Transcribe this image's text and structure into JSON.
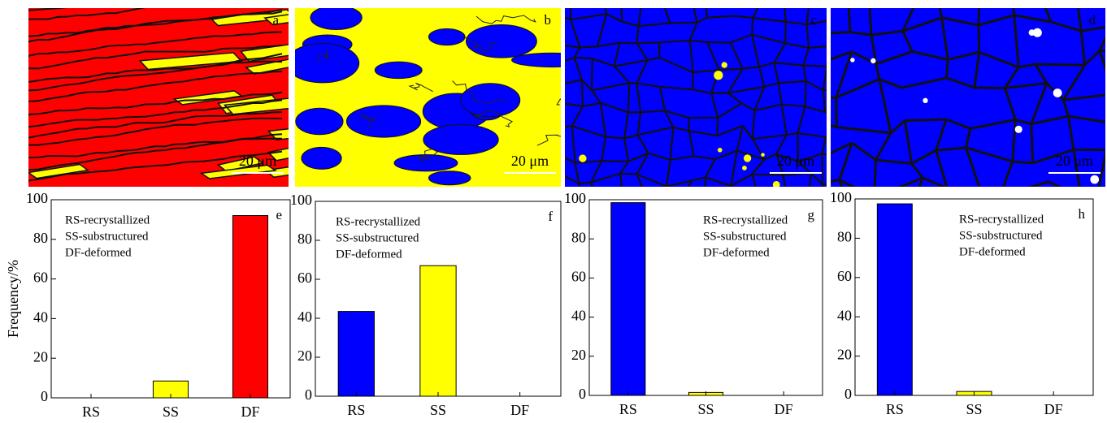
{
  "micrographs": [
    {
      "panel": "a",
      "scale_bar": "20 μm"
    },
    {
      "panel": "b",
      "scale_bar": "20 μm"
    },
    {
      "panel": "c",
      "scale_bar": "20 μm"
    },
    {
      "panel": "d",
      "scale_bar": "20 μm"
    }
  ],
  "chart_data": [
    {
      "type": "bar",
      "panel_label": "e",
      "y_label": "Frequency/%",
      "categories": [
        "RS",
        "SS",
        "DF"
      ],
      "values": [
        0,
        8.5,
        92
      ],
      "colors": [
        "#0000ff",
        "#ffff00",
        "#ff0000"
      ],
      "ylim": [
        0,
        100
      ],
      "yticks": [
        0,
        20,
        40,
        60,
        80,
        100
      ],
      "annotations": [
        "RS-recrystallized",
        "SS-substructured",
        "DF-deformed"
      ]
    },
    {
      "type": "bar",
      "panel_label": "f",
      "categories": [
        "RS",
        "SS",
        "DF"
      ],
      "values": [
        43.5,
        67,
        0
      ],
      "colors": [
        "#0000ff",
        "#ffff00",
        "#ff0000"
      ],
      "ylim": [
        0,
        100
      ],
      "yticks": [
        0,
        20,
        40,
        60,
        80,
        100
      ],
      "annotations": [
        "RS-recrystallized",
        "SS-substructured",
        "DF-deformed"
      ]
    },
    {
      "type": "bar",
      "panel_label": "g",
      "categories": [
        "RS",
        "SS",
        "DF"
      ],
      "values": [
        98.5,
        1.5,
        0
      ],
      "colors": [
        "#0000ff",
        "#ffff00",
        "#ff0000"
      ],
      "ylim": [
        0,
        100
      ],
      "yticks": [
        0,
        20,
        40,
        60,
        80,
        100
      ],
      "annotations": [
        "RS-recrystallized",
        "SS-substructured",
        "DF-deformed"
      ]
    },
    {
      "type": "bar",
      "panel_label": "h",
      "categories": [
        "RS",
        "SS",
        "DF"
      ],
      "values": [
        97.5,
        2,
        0
      ],
      "colors": [
        "#0000ff",
        "#ffff00",
        "#ff0000"
      ],
      "ylim": [
        0,
        100
      ],
      "yticks": [
        0,
        20,
        40,
        60,
        80,
        100
      ],
      "annotations": [
        "RS-recrystallized",
        "SS-substructured",
        "DF-deformed"
      ]
    }
  ]
}
